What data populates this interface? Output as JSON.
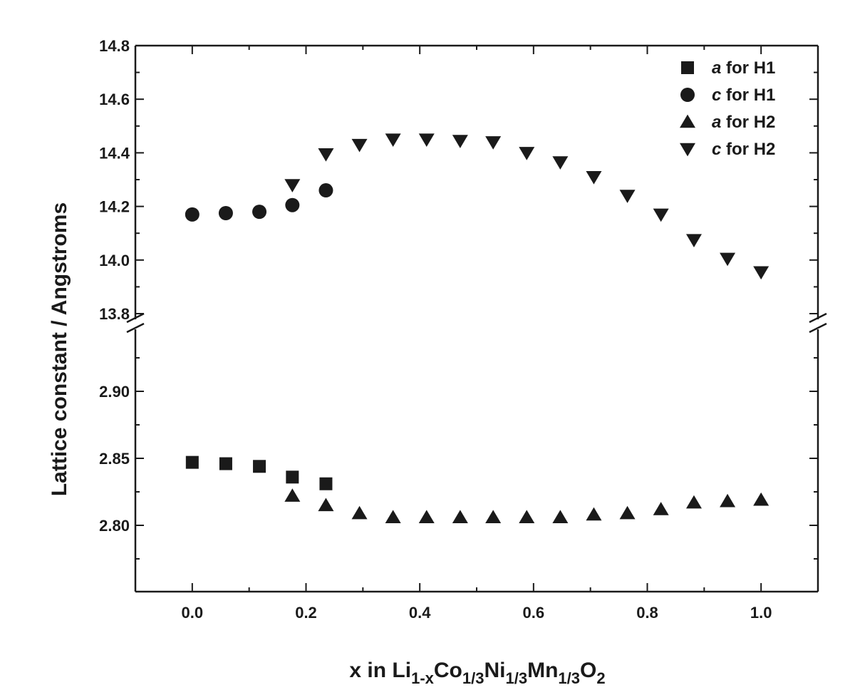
{
  "chart_data": {
    "type": "scatter",
    "title": "",
    "xlabel": {
      "parts": [
        {
          "text": "x in Li",
          "sub": false
        },
        {
          "text": "1-x",
          "sub": true
        },
        {
          "text": "Co",
          "sub": false
        },
        {
          "text": "1/3",
          "sub": true
        },
        {
          "text": "Ni",
          "sub": false
        },
        {
          "text": "1/3",
          "sub": true
        },
        {
          "text": "Mn",
          "sub": false
        },
        {
          "text": "1/3",
          "sub": true
        },
        {
          "text": "O",
          "sub": false
        },
        {
          "text": "2",
          "sub": true
        }
      ]
    },
    "ylabel": "Lattice constant / Angstroms",
    "xlim": [
      -0.1,
      1.1
    ],
    "x_ticks": [
      "0.0",
      "0.2",
      "0.4",
      "0.6",
      "0.8",
      "1.0"
    ],
    "y_axis_break": true,
    "upper_panel": {
      "ylim": [
        13.8,
        14.8
      ],
      "ticks": [
        "13.8",
        "14.0",
        "14.2",
        "14.4",
        "14.6",
        "14.8"
      ]
    },
    "lower_panel": {
      "ylim": [
        2.75,
        2.95
      ],
      "ticks": [
        "2.80",
        "2.85",
        "2.90"
      ]
    },
    "grid": false,
    "legend_position": "top-right",
    "series": [
      {
        "name_italic": "a",
        "name_rest": " for H1",
        "marker": "square",
        "panel": "lower",
        "x": [
          0.0,
          0.059,
          0.118,
          0.176,
          0.235
        ],
        "y": [
          2.847,
          2.846,
          2.844,
          2.836,
          2.831
        ]
      },
      {
        "name_italic": "c",
        "name_rest": " for H1",
        "marker": "circle",
        "panel": "upper",
        "x": [
          0.0,
          0.059,
          0.118,
          0.176,
          0.235
        ],
        "y": [
          14.17,
          14.175,
          14.18,
          14.205,
          14.26
        ]
      },
      {
        "name_italic": "a",
        "name_rest": " for H2",
        "marker": "triangle-up",
        "panel": "lower",
        "x": [
          0.176,
          0.235,
          0.294,
          0.353,
          0.412,
          0.471,
          0.529,
          0.588,
          0.647,
          0.706,
          0.765,
          0.824,
          0.882,
          0.941,
          1.0
        ],
        "y": [
          2.822,
          2.815,
          2.809,
          2.806,
          2.806,
          2.806,
          2.806,
          2.806,
          2.806,
          2.808,
          2.809,
          2.812,
          2.817,
          2.818,
          2.819
        ]
      },
      {
        "name_italic": "c",
        "name_rest": " for H2",
        "marker": "triangle-down",
        "panel": "upper",
        "x": [
          0.176,
          0.235,
          0.294,
          0.353,
          0.412,
          0.471,
          0.529,
          0.588,
          0.647,
          0.706,
          0.765,
          0.824,
          0.882,
          0.941,
          1.0
        ],
        "y": [
          14.28,
          14.395,
          14.43,
          14.45,
          14.45,
          14.445,
          14.44,
          14.4,
          14.365,
          14.31,
          14.24,
          14.17,
          14.075,
          14.005,
          13.955
        ]
      }
    ]
  },
  "style": {
    "ink": "#1a1a1a",
    "background": "#ffffff"
  }
}
